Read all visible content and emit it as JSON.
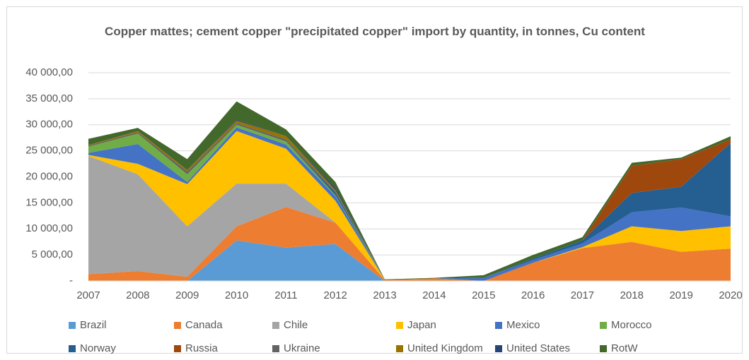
{
  "chart_data": {
    "type": "stacked_area",
    "title": "Copper mattes; cement copper \"precipitated copper\" import by quantity, in tonnes, Cu content",
    "categories": [
      "2007",
      "2008",
      "2009",
      "2010",
      "2011",
      "2012",
      "2013",
      "2014",
      "2015",
      "2016",
      "2017",
      "2018",
      "2019",
      "2020"
    ],
    "ylim": [
      0,
      40000
    ],
    "yticks": [
      {
        "value": 0,
        "label": "-"
      },
      {
        "value": 5000,
        "label": "5 000,00"
      },
      {
        "value": 10000,
        "label": "10 000,00"
      },
      {
        "value": 15000,
        "label": "15 000,00"
      },
      {
        "value": 20000,
        "label": "20 000,00"
      },
      {
        "value": 25000,
        "label": "25 000,00"
      },
      {
        "value": 30000,
        "label": "30 000,00"
      },
      {
        "value": 35000,
        "label": "35 000,00"
      },
      {
        "value": 40000,
        "label": "40 000,00"
      }
    ],
    "grid": true,
    "legend": "bottom",
    "series": [
      {
        "name": "Brazil",
        "color": "#5b9bd5",
        "values": [
          0,
          0,
          0,
          7800,
          6400,
          7100,
          0,
          0,
          0,
          0,
          0,
          0,
          0,
          0
        ]
      },
      {
        "name": "Canada",
        "color": "#ed7d31",
        "values": [
          1300,
          1900,
          800,
          2700,
          7800,
          4100,
          200,
          500,
          0,
          3500,
          6300,
          7500,
          5600,
          6200
        ]
      },
      {
        "name": "Chile",
        "color": "#a5a5a5",
        "values": [
          22700,
          18600,
          9700,
          8200,
          4500,
          0,
          0,
          0,
          0,
          0,
          0,
          0,
          0,
          0
        ]
      },
      {
        "name": "Japan",
        "color": "#ffc000",
        "values": [
          200,
          2000,
          8100,
          10100,
          6700,
          4200,
          0,
          0,
          0,
          0,
          200,
          3000,
          4000,
          4300
        ]
      },
      {
        "name": "Mexico",
        "color": "#4472c4",
        "values": [
          400,
          3800,
          400,
          700,
          800,
          900,
          0,
          0,
          600,
          500,
          700,
          2700,
          4500,
          1900
        ]
      },
      {
        "name": "Morocco",
        "color": "#70ad47",
        "values": [
          1200,
          2000,
          1500,
          500,
          600,
          200,
          0,
          0,
          0,
          0,
          0,
          0,
          0,
          0
        ]
      },
      {
        "name": "Norway",
        "color": "#255e91",
        "values": [
          0,
          0,
          0,
          0,
          0,
          500,
          0,
          0,
          0,
          300,
          600,
          3700,
          4000,
          14100
        ]
      },
      {
        "name": "Russia",
        "color": "#9e480e",
        "values": [
          0,
          0,
          0,
          0,
          0,
          0,
          0,
          0,
          0,
          0,
          0,
          5200,
          5300,
          700
        ]
      },
      {
        "name": "Ukraine",
        "color": "#636363",
        "values": [
          200,
          300,
          500,
          300,
          400,
          200,
          0,
          0,
          0,
          0,
          0,
          0,
          0,
          0
        ]
      },
      {
        "name": "United Kingdom",
        "color": "#997300",
        "values": [
          100,
          200,
          300,
          500,
          600,
          300,
          0,
          0,
          0,
          0,
          0,
          0,
          0,
          0
        ]
      },
      {
        "name": "United States",
        "color": "#264478",
        "values": [
          0,
          0,
          0,
          200,
          0,
          400,
          0,
          0,
          0,
          0,
          0,
          0,
          0,
          0
        ]
      },
      {
        "name": "RotW",
        "color": "#43682b",
        "values": [
          1200,
          600,
          2100,
          3500,
          1300,
          1100,
          100,
          100,
          500,
          700,
          600,
          600,
          300,
          600
        ]
      }
    ]
  }
}
